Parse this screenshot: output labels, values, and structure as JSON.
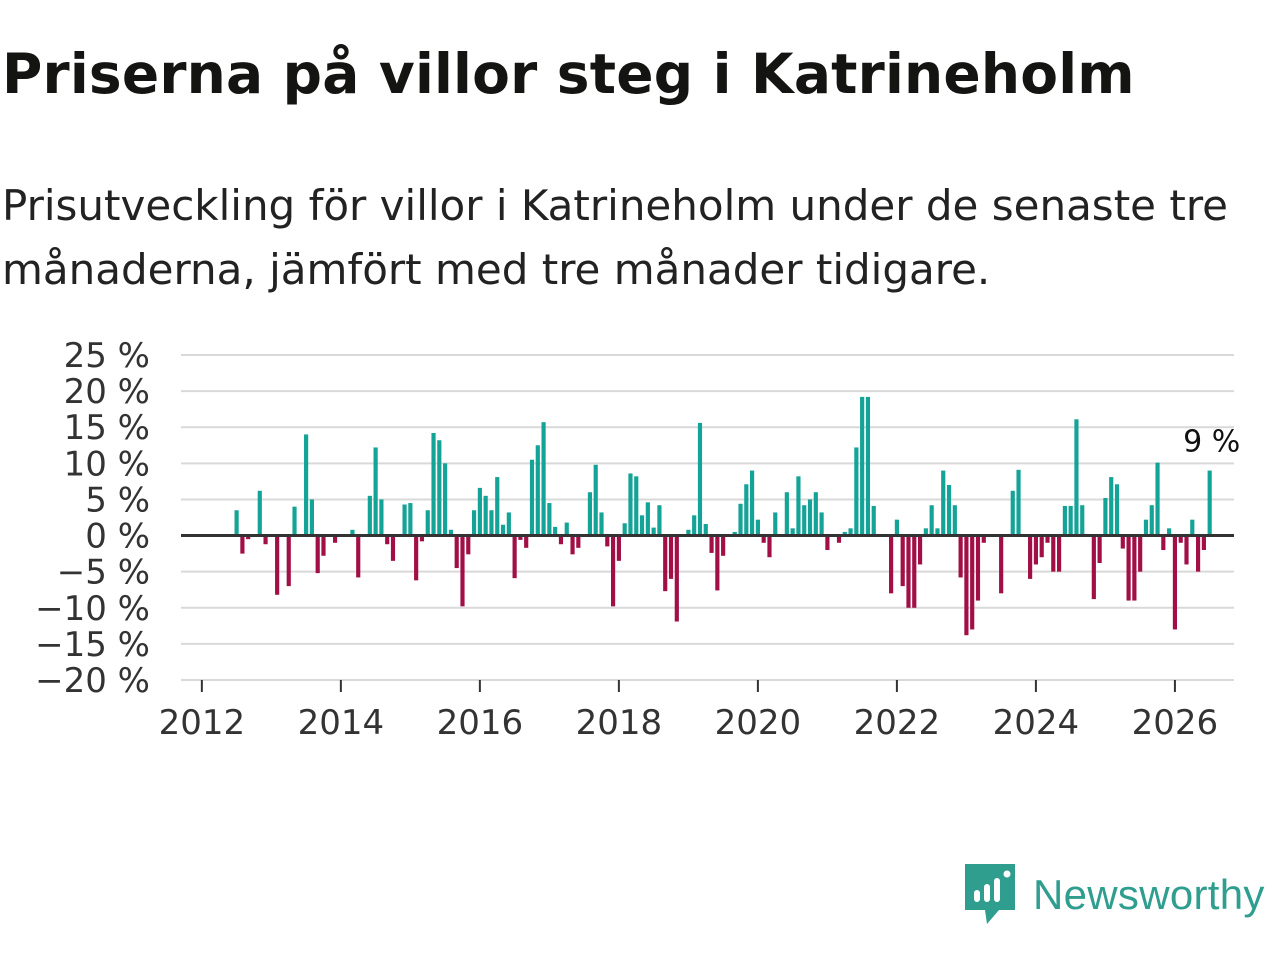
{
  "header": {
    "title": "Priserna på villor steg i Katrineholm",
    "subtitle": "Prisutveckling för villor i Katrineholm under de senaste tre månaderna, jämfört med tre månader tidigare."
  },
  "brand": {
    "name": "Newsworthy",
    "icon": "newsworthy-logo-icon"
  },
  "colors": {
    "positive": "#14a397",
    "negative": "#a10f46",
    "grid": "#d9d9d9",
    "zero_line": "#333333",
    "brand": "#2f9e8f"
  },
  "chart_data": {
    "type": "bar",
    "title": "Priserna på villor steg i Katrineholm",
    "xlabel": "",
    "ylabel": "",
    "ylim": [
      -20,
      25
    ],
    "xlim": [
      2011.7,
      2026.85
    ],
    "y_ticks": [
      {
        "value": 25,
        "label": "25 %"
      },
      {
        "value": 20,
        "label": "20 %"
      },
      {
        "value": 15,
        "label": "15 %"
      },
      {
        "value": 10,
        "label": "10 %"
      },
      {
        "value": 5,
        "label": "5 %"
      },
      {
        "value": 0,
        "label": "0 %"
      },
      {
        "value": -5,
        "label": "−5 %"
      },
      {
        "value": -10,
        "label": "−10 %"
      },
      {
        "value": -15,
        "label": "−15 %"
      },
      {
        "value": -20,
        "label": "−20 %"
      }
    ],
    "x_ticks": [
      {
        "value": 2012,
        "label": "2012"
      },
      {
        "value": 2014,
        "label": "2014"
      },
      {
        "value": 2016,
        "label": "2016"
      },
      {
        "value": 2018,
        "label": "2018"
      },
      {
        "value": 2020,
        "label": "2020"
      },
      {
        "value": 2022,
        "label": "2022"
      },
      {
        "value": 2024,
        "label": "2024"
      },
      {
        "value": 2026,
        "label": "2026"
      }
    ],
    "start": {
      "year": 2012,
      "month": 7
    },
    "monthly_change_percent": [
      3.5,
      -2.5,
      -0.5,
      0,
      6.2,
      -1.2,
      0,
      -8.2,
      0,
      -7,
      4,
      0,
      14,
      5,
      -5.2,
      -2.8,
      0,
      -1,
      0,
      0,
      0.8,
      -5.8,
      0,
      5.5,
      12.2,
      5,
      -1.2,
      -3.5,
      0,
      4.3,
      4.5,
      -6.2,
      -0.8,
      3.5,
      14.2,
      13.2,
      10,
      0.8,
      -4.5,
      -9.8,
      -2.6,
      3.5,
      6.6,
      5.5,
      3.5,
      8.1,
      1.5,
      3.2,
      -5.9,
      -0.6,
      -1.7,
      10.5,
      12.5,
      15.7,
      4.5,
      1.2,
      -1.2,
      1.8,
      -2.6,
      -1.7,
      0,
      6,
      9.8,
      3.2,
      -1.5,
      -9.8,
      -3.5,
      1.7,
      8.6,
      8.2,
      2.8,
      4.6,
      1.1,
      4.2,
      -7.7,
      -6,
      -11.9,
      0,
      0.8,
      2.8,
      15.6,
      1.6,
      -2.4,
      -7.6,
      -2.8,
      0,
      0.5,
      4.4,
      7.1,
      9,
      2.2,
      -1,
      -3,
      3.2,
      0,
      6,
      1,
      8.2,
      4.2,
      5,
      6,
      3.2,
      -2,
      0,
      -1,
      0.5,
      1,
      12.2,
      19.2,
      19.2,
      4.1,
      0,
      0,
      -8,
      2.2,
      -7,
      -10,
      -10,
      -4,
      1,
      4.2,
      1,
      9,
      7,
      4.2,
      -5.8,
      -13.8,
      -13,
      -9,
      -1,
      0,
      0,
      -8,
      0,
      6.2,
      9.1,
      0,
      -6,
      -4,
      -3,
      -1,
      -5,
      -5,
      4.1,
      4.1,
      16.1,
      4.2,
      0,
      -8.8,
      -3.8,
      5.2,
      8.1,
      7.1,
      -1.8,
      -9,
      -9,
      -5,
      2.2,
      4.2,
      10.1,
      -2,
      1,
      -13,
      -1,
      -4,
      2.2,
      -5,
      -2,
      9
    ],
    "last_label": {
      "value": 9,
      "text": "9 %"
    }
  }
}
